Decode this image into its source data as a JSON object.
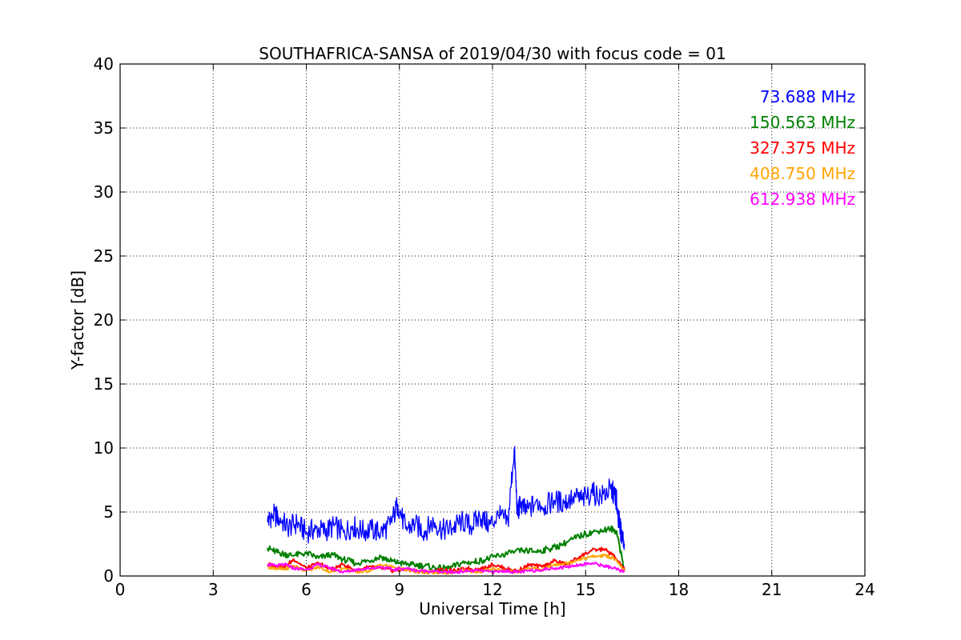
{
  "chart_data": {
    "type": "line",
    "title": "SOUTHAFRICA-SANSA of 2019/04/30 with focus code = 01",
    "xlabel": "Universal Time [h]",
    "ylabel": "Y-factor [dB]",
    "xlim": [
      0,
      24
    ],
    "ylim": [
      0,
      40
    ],
    "xticks": [
      0,
      3,
      6,
      9,
      12,
      15,
      18,
      21,
      24
    ],
    "yticks": [
      0,
      5,
      10,
      15,
      20,
      25,
      30,
      35,
      40
    ],
    "grid": true,
    "legend_position": "top-right",
    "series": [
      {
        "name": "73.688 MHz",
        "color": "#0000ff",
        "x": [
          4.75,
          4.9,
          5.1,
          5.4,
          5.7,
          6.0,
          6.3,
          6.6,
          6.9,
          7.2,
          7.5,
          7.8,
          8.1,
          8.4,
          8.7,
          8.95,
          9.2,
          9.5,
          9.8,
          10.1,
          10.4,
          10.7,
          11.0,
          11.3,
          11.6,
          11.9,
          12.2,
          12.5,
          12.7,
          12.8,
          12.9,
          13.1,
          13.4,
          13.7,
          14.0,
          14.3,
          14.6,
          14.9,
          15.2,
          15.5,
          15.8,
          15.95,
          16.0,
          16.1,
          16.25
        ],
        "y": [
          4.2,
          4.8,
          4.6,
          3.8,
          4.1,
          3.4,
          3.7,
          3.5,
          3.9,
          3.4,
          3.9,
          3.5,
          3.6,
          3.4,
          4.0,
          5.6,
          3.7,
          4.0,
          3.5,
          4.2,
          3.6,
          3.7,
          4.3,
          3.9,
          4.6,
          4.0,
          4.7,
          4.2,
          10.0,
          4.9,
          5.6,
          5.0,
          5.8,
          5.5,
          5.9,
          5.7,
          6.2,
          6.0,
          6.5,
          6.2,
          6.8,
          6.3,
          5.8,
          3.8,
          2.5
        ]
      },
      {
        "name": "150.563 MHz",
        "color": "#008000",
        "x": [
          4.75,
          5.0,
          5.3,
          5.6,
          6.0,
          6.4,
          6.8,
          7.2,
          7.6,
          8.0,
          8.4,
          8.7,
          9.0,
          9.4,
          9.8,
          10.2,
          10.6,
          11.0,
          11.4,
          11.8,
          12.2,
          12.6,
          13.0,
          13.4,
          13.8,
          14.2,
          14.6,
          15.0,
          15.4,
          15.8,
          16.0,
          16.25
        ],
        "y": [
          2.2,
          1.9,
          1.7,
          1.6,
          1.8,
          1.4,
          1.7,
          1.3,
          1.0,
          1.2,
          1.5,
          1.2,
          1.0,
          0.9,
          0.8,
          0.6,
          0.6,
          1.0,
          1.1,
          1.3,
          1.6,
          1.8,
          2.0,
          1.9,
          2.1,
          2.4,
          2.9,
          3.3,
          3.5,
          3.7,
          3.5,
          0.4
        ]
      },
      {
        "name": "327.375 MHz",
        "color": "#ff0000",
        "x": [
          4.75,
          5.0,
          5.3,
          5.6,
          6.0,
          6.4,
          6.8,
          7.2,
          7.6,
          8.0,
          8.4,
          8.8,
          9.2,
          9.6,
          10.0,
          10.4,
          10.8,
          11.2,
          11.6,
          12.0,
          12.4,
          12.8,
          13.2,
          13.6,
          14.0,
          14.4,
          14.8,
          15.2,
          15.6,
          15.9,
          16.25
        ],
        "y": [
          0.9,
          0.8,
          0.7,
          1.3,
          0.6,
          1.0,
          0.5,
          0.9,
          0.4,
          0.7,
          0.6,
          0.4,
          0.5,
          0.4,
          0.3,
          0.5,
          0.4,
          0.6,
          0.5,
          0.9,
          0.6,
          0.4,
          0.9,
          0.7,
          1.2,
          0.9,
          1.5,
          2.0,
          2.1,
          1.6,
          0.5
        ]
      },
      {
        "name": "408.750 MHz",
        "color": "#ffa500",
        "x": [
          4.75,
          5.0,
          5.3,
          5.6,
          6.0,
          6.4,
          6.8,
          7.2,
          7.6,
          8.0,
          8.4,
          8.8,
          9.2,
          9.6,
          10.0,
          10.4,
          10.8,
          11.2,
          11.6,
          12.0,
          12.4,
          12.8,
          13.2,
          13.6,
          14.0,
          14.4,
          14.8,
          15.2,
          15.6,
          15.9,
          16.25
        ],
        "y": [
          0.7,
          0.6,
          0.5,
          0.8,
          0.4,
          0.7,
          0.3,
          0.6,
          0.3,
          0.4,
          0.9,
          0.7,
          0.5,
          0.3,
          0.3,
          0.2,
          0.3,
          0.4,
          0.3,
          0.6,
          0.4,
          0.3,
          0.6,
          0.5,
          0.9,
          1.0,
          1.3,
          1.5,
          1.6,
          1.4,
          0.4
        ]
      },
      {
        "name": "612.938 MHz",
        "color": "#ff00ff",
        "x": [
          4.75,
          5.0,
          5.3,
          5.6,
          6.0,
          6.4,
          6.8,
          7.2,
          7.6,
          8.0,
          8.4,
          8.8,
          9.2,
          9.6,
          10.0,
          10.4,
          10.8,
          11.2,
          11.6,
          12.0,
          12.4,
          12.8,
          13.2,
          13.6,
          14.0,
          14.4,
          14.8,
          15.2,
          15.6,
          15.9,
          16.25
        ],
        "y": [
          0.9,
          0.8,
          0.9,
          0.6,
          0.5,
          0.9,
          0.6,
          0.3,
          0.5,
          0.6,
          0.7,
          0.5,
          0.6,
          0.4,
          0.4,
          0.3,
          0.3,
          0.4,
          0.4,
          0.3,
          0.4,
          0.3,
          0.4,
          0.5,
          0.6,
          0.7,
          0.9,
          1.0,
          0.8,
          0.6,
          0.3
        ]
      }
    ]
  }
}
